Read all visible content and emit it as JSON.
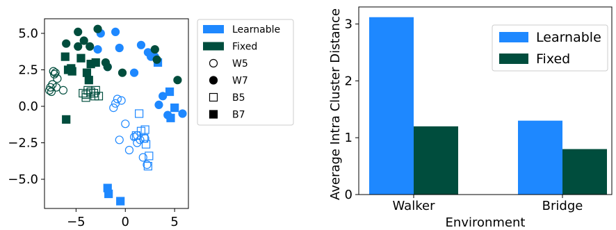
{
  "colors": {
    "learnable": "#1E88FF",
    "fixed": "#004D3D"
  },
  "chart_data": [
    {
      "type": "scatter",
      "xlim": [
        -8.2,
        6.4
      ],
      "ylim": [
        -7.0,
        6.0
      ],
      "x_ticks": [
        -5,
        0,
        5
      ],
      "x_tick_labels": [
        "−5",
        "0",
        "5"
      ],
      "y_ticks": [
        5.0,
        2.5,
        0.0,
        -2.5,
        -5.0
      ],
      "y_tick_labels": [
        "5.0",
        "2.5",
        "0.0",
        "−2.5",
        "−5.0"
      ],
      "legend_position": "outside-right",
      "legend": [
        {
          "label": "Learnable",
          "kind": "patch",
          "color": "learnable"
        },
        {
          "label": "Fixed",
          "kind": "patch",
          "color": "fixed"
        },
        {
          "label": "W5",
          "kind": "marker",
          "marker": "circle-open"
        },
        {
          "label": "W7",
          "kind": "marker",
          "marker": "circle-filled"
        },
        {
          "label": "B5",
          "kind": "marker",
          "marker": "square-open"
        },
        {
          "label": "B7",
          "kind": "marker",
          "marker": "square-filled"
        }
      ],
      "series": [
        {
          "name": "Learnable W5",
          "color": "learnable",
          "marker": "circle-open",
          "points": [
            [
              -0.8,
              0.5
            ],
            [
              -0.4,
              0.4
            ],
            [
              -1.0,
              0.2
            ],
            [
              -1.2,
              -0.1
            ],
            [
              0.0,
              -1.2
            ],
            [
              -0.6,
              -2.3
            ],
            [
              0.4,
              -3.0
            ],
            [
              1.2,
              -2.5
            ],
            [
              1.8,
              -3.5
            ],
            [
              1.5,
              -2.3
            ],
            [
              2.0,
              -2.2
            ],
            [
              2.2,
              -4.0
            ],
            [
              0.9,
              -2.1
            ],
            [
              1.2,
              -2.0
            ]
          ]
        },
        {
          "name": "Learnable W7",
          "color": "learnable",
          "marker": "circle-filled",
          "points": [
            [
              -1.8,
              2.7
            ],
            [
              -0.6,
              4.0
            ],
            [
              1.6,
              4.2
            ],
            [
              2.3,
              3.7
            ],
            [
              3.0,
              3.4
            ],
            [
              0.9,
              2.3
            ],
            [
              3.8,
              0.7
            ],
            [
              3.4,
              0.1
            ],
            [
              4.3,
              -0.6
            ],
            [
              5.8,
              -0.5
            ],
            [
              -2.8,
              3.9
            ],
            [
              -2.5,
              5.0
            ],
            [
              -1.0,
              5.1
            ],
            [
              2.6,
              3.4
            ]
          ]
        },
        {
          "name": "Learnable B5",
          "color": "learnable",
          "marker": "square-open",
          "points": [
            [
              1.4,
              -0.5
            ],
            [
              1.6,
              -1.7
            ],
            [
              2.0,
              -1.6
            ],
            [
              1.9,
              -2.2
            ],
            [
              1.1,
              -2.0
            ],
            [
              2.1,
              -2.6
            ],
            [
              2.4,
              -3.4
            ],
            [
              2.3,
              -4.1
            ]
          ]
        },
        {
          "name": "Learnable B7",
          "color": "learnable",
          "marker": "square-filled",
          "points": [
            [
              4.5,
              1.0
            ],
            [
              5.0,
              -0.1
            ],
            [
              4.6,
              -0.8
            ],
            [
              3.3,
              3.0
            ],
            [
              -1.8,
              -5.6
            ],
            [
              -1.7,
              -6.0
            ],
            [
              -0.5,
              -6.5
            ]
          ]
        },
        {
          "name": "Fixed W5",
          "color": "fixed",
          "marker": "circle-open",
          "points": [
            [
              -7.3,
              2.4
            ],
            [
              -7.1,
              2.3
            ],
            [
              -6.9,
              1.9
            ],
            [
              -7.4,
              1.5
            ],
            [
              -7.6,
              1.3
            ],
            [
              -7.7,
              1.1
            ],
            [
              -7.5,
              1.0
            ],
            [
              -7.0,
              1.3
            ],
            [
              -6.3,
              1.1
            ],
            [
              -7.2,
              2.2
            ]
          ]
        },
        {
          "name": "Fixed W7",
          "color": "fixed",
          "marker": "circle-filled",
          "points": [
            [
              -6.0,
              4.3
            ],
            [
              -4.8,
              5.1
            ],
            [
              -4.2,
              4.5
            ],
            [
              -4.8,
              4.1
            ],
            [
              -2.8,
              5.3
            ],
            [
              -2.0,
              3.0
            ],
            [
              -0.3,
              2.3
            ],
            [
              3.0,
              3.9
            ],
            [
              3.2,
              3.2
            ],
            [
              5.3,
              1.8
            ],
            [
              -3.6,
              4.1
            ],
            [
              -1.8,
              2.7
            ]
          ]
        },
        {
          "name": "Fixed B5",
          "color": "fixed",
          "marker": "square-open",
          "points": [
            [
              -4.3,
              0.9
            ],
            [
              -4.0,
              0.6
            ],
            [
              -3.5,
              0.9
            ],
            [
              -3.8,
              1.1
            ],
            [
              -3.1,
              0.7
            ],
            [
              -3.5,
              1.0
            ],
            [
              -4.0,
              0.8
            ],
            [
              -3.2,
              0.9
            ],
            [
              -2.7,
              0.7
            ],
            [
              -3.0,
              1.1
            ]
          ]
        },
        {
          "name": "Fixed B7",
          "color": "fixed",
          "marker": "square-filled",
          "points": [
            [
              -6.1,
              3.4
            ],
            [
              -5.8,
              2.5
            ],
            [
              -5.4,
              2.4
            ],
            [
              -4.5,
              3.3
            ],
            [
              -3.9,
              2.3
            ],
            [
              -3.5,
              2.9
            ],
            [
              -3.0,
              3.0
            ],
            [
              -5.5,
              2.6
            ],
            [
              -3.7,
              1.8
            ],
            [
              -6.0,
              -0.9
            ]
          ]
        }
      ]
    },
    {
      "type": "bar",
      "categories": [
        "Walker",
        "Bridge"
      ],
      "series": [
        {
          "name": "Learnable",
          "color": "learnable",
          "values": [
            3.12,
            1.3
          ]
        },
        {
          "name": "Fixed",
          "color": "fixed",
          "values": [
            1.2,
            0.8
          ]
        }
      ],
      "xlabel": "Environment",
      "ylabel": "Average Intra Cluster Distance",
      "ylim": [
        0,
        3.3
      ],
      "y_ticks": [
        0,
        1,
        2,
        3
      ],
      "legend_position": "top-right"
    }
  ]
}
